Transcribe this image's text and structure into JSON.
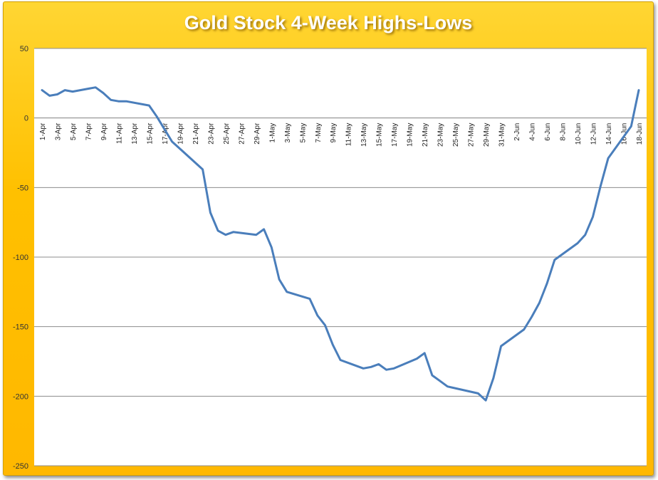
{
  "chart_data": {
    "type": "line",
    "title": "Gold Stock 4-Week Highs-Lows",
    "xlabel": "",
    "ylabel": "",
    "ylim": [
      -250,
      50
    ],
    "yticks": [
      50,
      0,
      -50,
      -100,
      -150,
      -200,
      -250
    ],
    "grid": true,
    "legend": "none",
    "line_color": "#4a7ebb",
    "categories": [
      "1-Apr",
      "2-Apr",
      "3-Apr",
      "4-Apr",
      "5-Apr",
      "6-Apr",
      "7-Apr",
      "8-Apr",
      "9-Apr",
      "10-Apr",
      "11-Apr",
      "12-Apr",
      "13-Apr",
      "14-Apr",
      "15-Apr",
      "16-Apr",
      "17-Apr",
      "18-Apr",
      "19-Apr",
      "20-Apr",
      "21-Apr",
      "22-Apr",
      "23-Apr",
      "24-Apr",
      "25-Apr",
      "26-Apr",
      "27-Apr",
      "28-Apr",
      "29-Apr",
      "30-Apr",
      "1-May",
      "2-May",
      "3-May",
      "4-May",
      "5-May",
      "6-May",
      "7-May",
      "8-May",
      "9-May",
      "10-May",
      "11-May",
      "12-May",
      "13-May",
      "14-May",
      "15-May",
      "16-May",
      "17-May",
      "18-May",
      "19-May",
      "20-May",
      "21-May",
      "22-May",
      "23-May",
      "24-May",
      "25-May",
      "26-May",
      "27-May",
      "28-May",
      "29-May",
      "30-May",
      "31-May",
      "1-Jun",
      "2-Jun",
      "3-Jun",
      "4-Jun",
      "5-Jun",
      "6-Jun",
      "7-Jun",
      "8-Jun",
      "9-Jun",
      "10-Jun",
      "11-Jun",
      "12-Jun",
      "13-Jun",
      "14-Jun",
      "15-Jun",
      "16-Jun",
      "17-Jun",
      "18-Jun"
    ],
    "tick_labels": [
      "1-Apr",
      "3-Apr",
      "5-Apr",
      "7-Apr",
      "9-Apr",
      "11-Apr",
      "13-Apr",
      "15-Apr",
      "17-Apr",
      "19-Apr",
      "21-Apr",
      "23-Apr",
      "25-Apr",
      "27-Apr",
      "29-Apr",
      "1-May",
      "3-May",
      "5-May",
      "7-May",
      "9-May",
      "11-May",
      "13-May",
      "15-May",
      "17-May",
      "19-May",
      "21-May",
      "23-May",
      "25-May",
      "27-May",
      "29-May",
      "31-May",
      "2-Jun",
      "4-Jun",
      "6-Jun",
      "8-Jun",
      "10-Jun",
      "12-Jun",
      "14-Jun",
      "16-Jun",
      "18-Jun"
    ],
    "series": [
      {
        "values_by_date": {
          "1-Apr": 20,
          "2-Apr": 16,
          "3-Apr": 17,
          "4-Apr": 20,
          "5-Apr": 19,
          "8-Apr": 22,
          "9-Apr": 18,
          "10-Apr": 13,
          "11-Apr": 12,
          "12-Apr": 12,
          "15-Apr": 9,
          "16-Apr": 1,
          "17-Apr": -8,
          "18-Apr": -17,
          "19-Apr": -22,
          "22-Apr": -37,
          "23-Apr": -68,
          "24-Apr": -81,
          "25-Apr": -84,
          "26-Apr": -82,
          "29-Apr": -84,
          "30-Apr": -80,
          "1-May": -93,
          "2-May": -116,
          "3-May": -125,
          "6-May": -130,
          "7-May": -142,
          "8-May": -149,
          "9-May": -163,
          "10-May": -174,
          "13-May": -180,
          "14-May": -179,
          "15-May": -177,
          "16-May": -181,
          "17-May": -180,
          "20-May": -173,
          "21-May": -169,
          "22-May": -185,
          "23-May": -189,
          "24-May": -193,
          "28-May": -198,
          "29-May": -203,
          "30-May": -187,
          "31-May": -164,
          "3-Jun": -152,
          "4-Jun": -143,
          "5-Jun": -133,
          "6-Jun": -119,
          "7-Jun": -102,
          "10-Jun": -90,
          "11-Jun": -84,
          "12-Jun": -71,
          "13-Jun": -49,
          "14-Jun": -29,
          "17-Jun": -6,
          "18-Jun": 20
        }
      }
    ]
  }
}
